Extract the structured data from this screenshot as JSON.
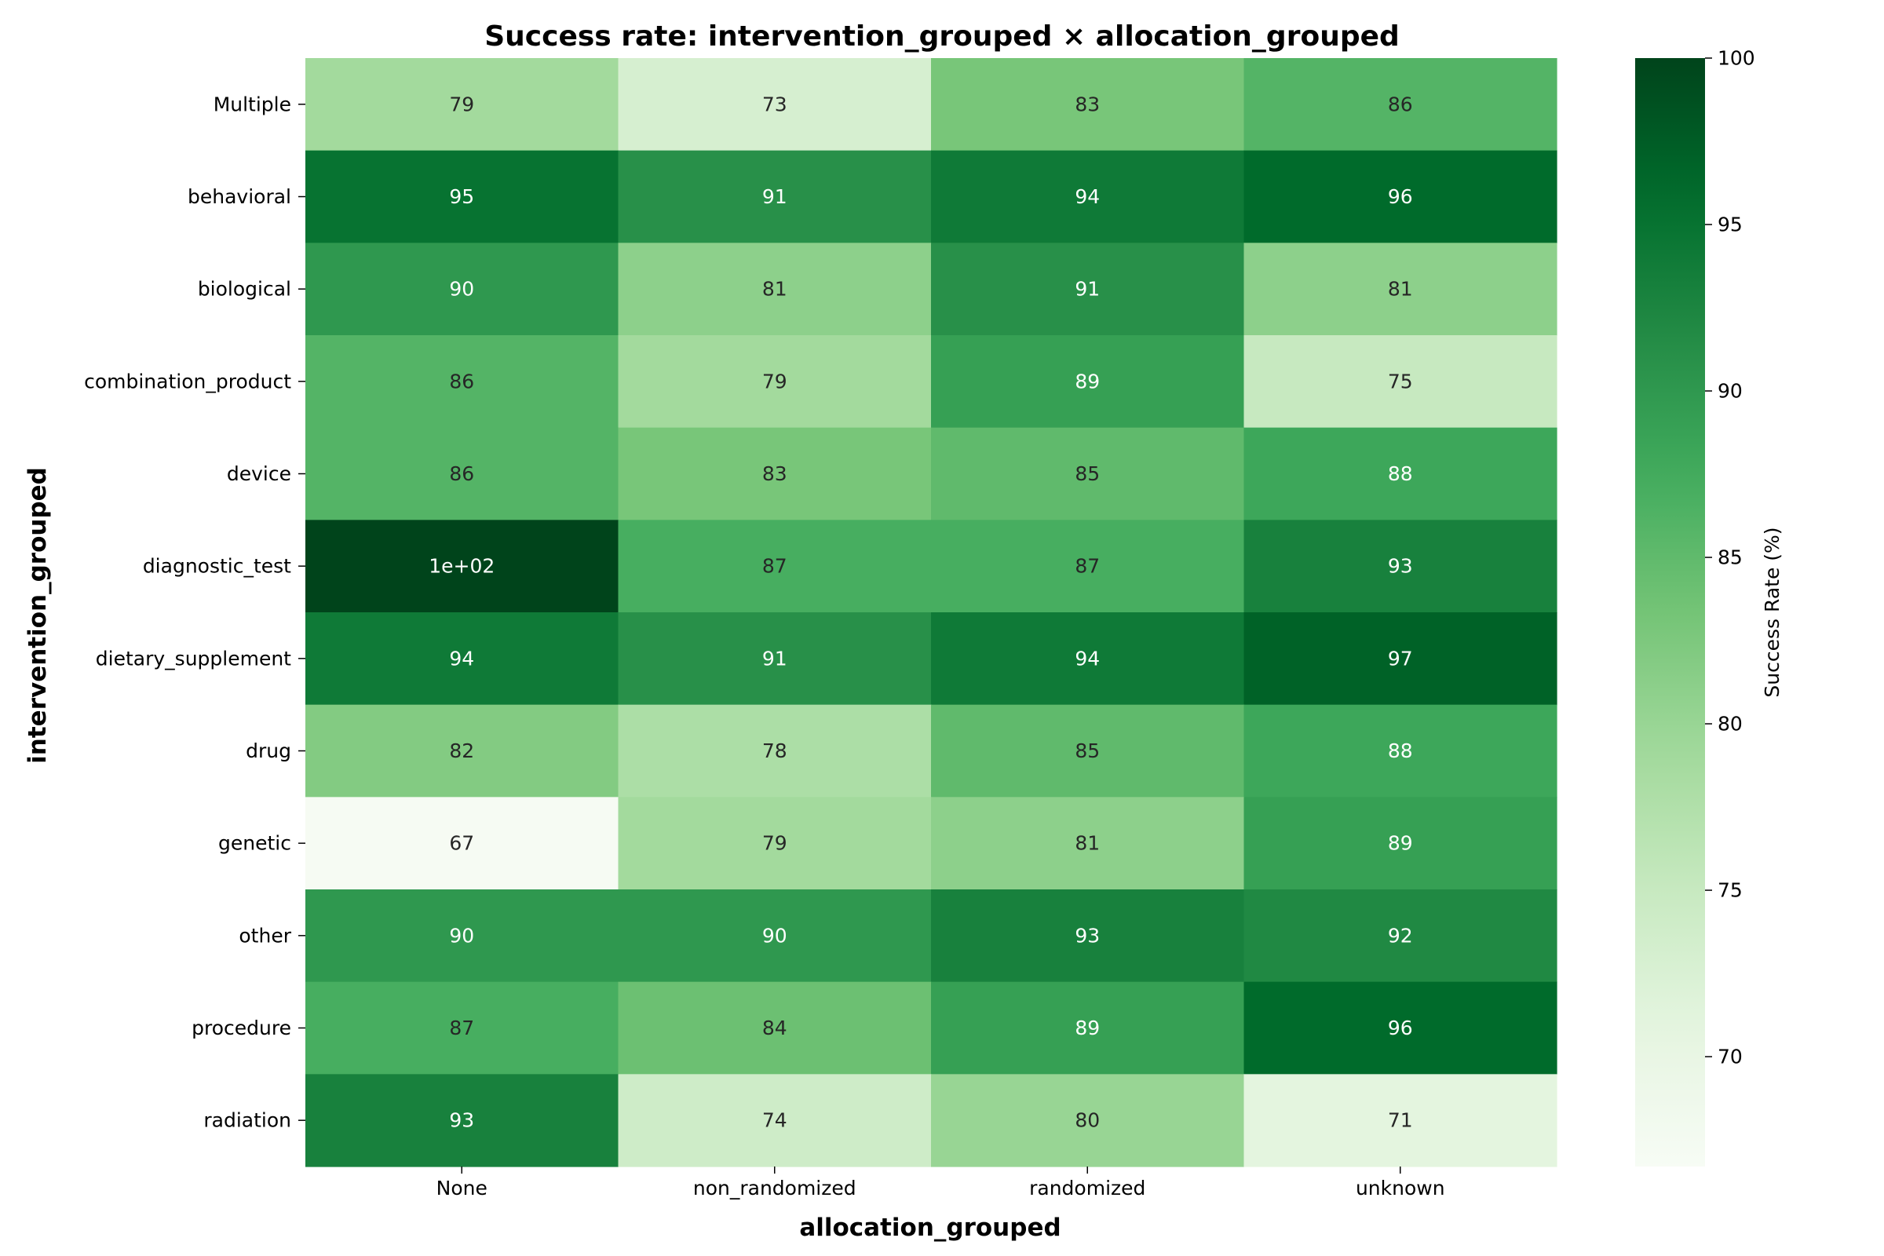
{
  "chart_data": {
    "type": "heatmap",
    "title": "Success rate: intervention_grouped × allocation_grouped",
    "xlabel": "allocation_grouped",
    "ylabel": "intervention_grouped",
    "x_categories": [
      "None",
      "non_randomized",
      "randomized",
      "unknown"
    ],
    "y_categories": [
      "Multiple",
      "behavioral",
      "biological",
      "combination_product",
      "device",
      "diagnostic_test",
      "dietary_supplement",
      "drug",
      "genetic",
      "other",
      "procedure",
      "radiation"
    ],
    "values": [
      [
        79,
        73,
        83,
        86
      ],
      [
        95,
        91,
        94,
        96
      ],
      [
        90,
        81,
        91,
        81
      ],
      [
        86,
        79,
        89,
        75
      ],
      [
        86,
        83,
        85,
        88
      ],
      [
        100,
        87,
        87,
        93
      ],
      [
        94,
        91,
        94,
        97
      ],
      [
        82,
        78,
        85,
        88
      ],
      [
        67,
        79,
        81,
        89
      ],
      [
        90,
        90,
        93,
        92
      ],
      [
        87,
        84,
        89,
        96
      ],
      [
        93,
        74,
        80,
        71
      ]
    ],
    "cell_labels": [
      [
        "79",
        "73",
        "83",
        "86"
      ],
      [
        "95",
        "91",
        "94",
        "96"
      ],
      [
        "90",
        "81",
        "91",
        "81"
      ],
      [
        "86",
        "79",
        "89",
        "75"
      ],
      [
        "86",
        "83",
        "85",
        "88"
      ],
      [
        "1e+02",
        "87",
        "87",
        "93"
      ],
      [
        "94",
        "91",
        "94",
        "97"
      ],
      [
        "82",
        "78",
        "85",
        "88"
      ],
      [
        "67",
        "79",
        "81",
        "89"
      ],
      [
        "90",
        "90",
        "93",
        "92"
      ],
      [
        "87",
        "84",
        "89",
        "96"
      ],
      [
        "93",
        "74",
        "80",
        "71"
      ]
    ],
    "colorbar": {
      "label": "Success Rate (%)",
      "range": [
        66.7,
        100
      ],
      "ticks": [
        70,
        75,
        80,
        85,
        90,
        95,
        100
      ],
      "colormap": "Greens",
      "legend_placement": "right"
    },
    "grid": false
  }
}
